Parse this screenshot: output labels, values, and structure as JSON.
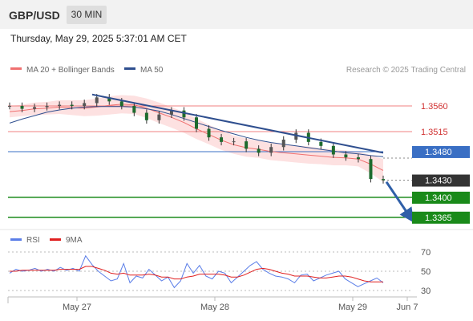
{
  "header": {
    "symbol": "GBP/USD",
    "timeframe": "30 MIN",
    "datetime": "Thursday, May 29, 2025 5:37:01 AM CET"
  },
  "legend": {
    "ma20_label": "MA 20 + Bollinger Bands",
    "ma50_label": "MA 50",
    "credit": "Research © 2025 Trading Central"
  },
  "colors": {
    "ma20": "#f07070",
    "ma50": "#2f4f8f",
    "band": "#fde1e1",
    "resistance": "#f08080",
    "pivot": "#3a6fc4",
    "support": "#1a8a1a",
    "last": "#333333",
    "rsi": "#5b7ee8",
    "rsi_ma": "#e02020"
  },
  "chart_data": [
    {
      "type": "line",
      "title": "",
      "x_ticks": [
        "May 27",
        "May 28",
        "May 29",
        "Jun 7"
      ],
      "ylim": [
        1.3345,
        1.3605
      ],
      "levels": [
        {
          "name": "resistance-2",
          "value": 1.356,
          "label": "1.3560"
        },
        {
          "name": "resistance-1",
          "value": 1.3515,
          "label": "1.3515"
        },
        {
          "name": "pivot",
          "value": 1.348,
          "label": "1.3480"
        },
        {
          "name": "last",
          "value": 1.343,
          "label": "1.3430"
        },
        {
          "name": "support-1",
          "value": 1.34,
          "label": "1.3400"
        },
        {
          "name": "support-2",
          "value": 1.3365,
          "label": "1.3365"
        }
      ],
      "series": [
        {
          "name": "MA 20 + Bollinger Bands",
          "values": [
            1.355,
            1.3552,
            1.3555,
            1.3556,
            1.3558,
            1.3557,
            1.3556,
            1.3558,
            1.3561,
            1.3563,
            1.3562,
            1.3556,
            1.3548,
            1.354,
            1.3531,
            1.352,
            1.351,
            1.35,
            1.3492,
            1.3487,
            1.3484,
            1.348,
            1.3478,
            1.3476,
            1.3474,
            1.3472,
            1.347,
            1.3469,
            1.3467,
            1.3458,
            1.3447
          ]
        },
        {
          "name": "MA 50",
          "values": [
            1.353,
            1.3537,
            1.3543,
            1.3549,
            1.3553,
            1.3556,
            1.3558,
            1.3559,
            1.3559,
            1.3559,
            1.3558,
            1.3555,
            1.3551,
            1.3545,
            1.3538,
            1.3531,
            1.3524,
            1.3517,
            1.3511,
            1.3505,
            1.35,
            1.3496,
            1.3493,
            1.349,
            1.3487,
            1.3484,
            1.3481,
            1.3478,
            1.3476,
            1.3473,
            1.3471
          ]
        },
        {
          "name": "price",
          "values": [
            1.356,
            1.3555,
            1.3558,
            1.356,
            1.3562,
            1.356,
            1.3565,
            1.3575,
            1.3568,
            1.356,
            1.3548,
            1.3535,
            1.3545,
            1.3552,
            1.354,
            1.352,
            1.3505,
            1.3497,
            1.3498,
            1.3485,
            1.3478,
            1.3488,
            1.3501,
            1.3513,
            1.3497,
            1.349,
            1.3475,
            1.347,
            1.3467,
            1.3432,
            1.343
          ]
        }
      ],
      "trendline": {
        "from": 1.358,
        "to": 1.3478
      },
      "projection": {
        "from": 1.3427,
        "to": 1.3365
      }
    },
    {
      "type": "line",
      "title": "",
      "ylim": [
        25,
        75
      ],
      "y_ticks": [
        70,
        50,
        30
      ],
      "series": [
        {
          "name": "RSI",
          "values": [
            48,
            52,
            50,
            51,
            53,
            50,
            52,
            50,
            54,
            51,
            53,
            50,
            66,
            57,
            50,
            45,
            40,
            42,
            58,
            38,
            45,
            43,
            52,
            46,
            40,
            44,
            33,
            40,
            58,
            48,
            56,
            45,
            42,
            50,
            48,
            38,
            44,
            50,
            56,
            60,
            52,
            48,
            45,
            44,
            42,
            38,
            46,
            47,
            40,
            43,
            46,
            48,
            50,
            42,
            38,
            34,
            37,
            40,
            43,
            38
          ]
        },
        {
          "name": "9MA",
          "values": [
            50,
            50,
            51,
            51,
            51,
            51,
            51,
            51,
            52,
            52,
            52,
            52,
            55,
            55,
            53,
            51,
            48,
            47,
            48,
            46,
            46,
            46,
            47,
            46,
            44,
            44,
            42,
            42,
            44,
            45,
            47,
            47,
            47,
            47,
            46,
            44,
            44,
            46,
            49,
            52,
            53,
            52,
            50,
            48,
            47,
            45,
            45,
            45,
            44,
            43,
            43,
            44,
            45,
            45,
            44,
            42,
            40,
            39,
            39,
            39
          ]
        }
      ],
      "legend_labels": [
        "RSI",
        "9MA"
      ]
    }
  ]
}
